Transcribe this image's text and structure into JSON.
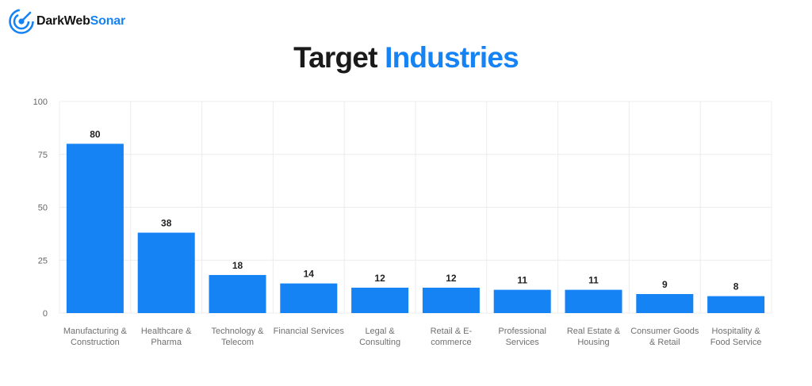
{
  "brand": {
    "name_a": "DarkWeb",
    "name_b": "Sonar",
    "color": "#1683f4"
  },
  "title": {
    "part1": "Target",
    "part2": "Industries"
  },
  "chart_data": {
    "type": "bar",
    "title": "Target Industries",
    "categories": [
      [
        "Manufacturing &",
        "Construction"
      ],
      [
        "Healthcare &",
        "Pharma"
      ],
      [
        "Technology &",
        "Telecom"
      ],
      [
        "Financial Services"
      ],
      [
        "Legal &",
        "Consulting"
      ],
      [
        "Retail & E-",
        "commerce"
      ],
      [
        "Professional",
        "Services"
      ],
      [
        "Real Estate &",
        "Housing"
      ],
      [
        "Consumer Goods",
        "& Retail"
      ],
      [
        "Hospitality &",
        "Food Service"
      ]
    ],
    "values": [
      80,
      38,
      18,
      14,
      12,
      12,
      11,
      11,
      9,
      8
    ],
    "ylim": [
      0,
      100
    ],
    "yticks": [
      0,
      25,
      50,
      75,
      100
    ],
    "xlabel": "",
    "ylabel": "",
    "bar_color": "#1683f4",
    "grid": true,
    "data_labels": true
  }
}
